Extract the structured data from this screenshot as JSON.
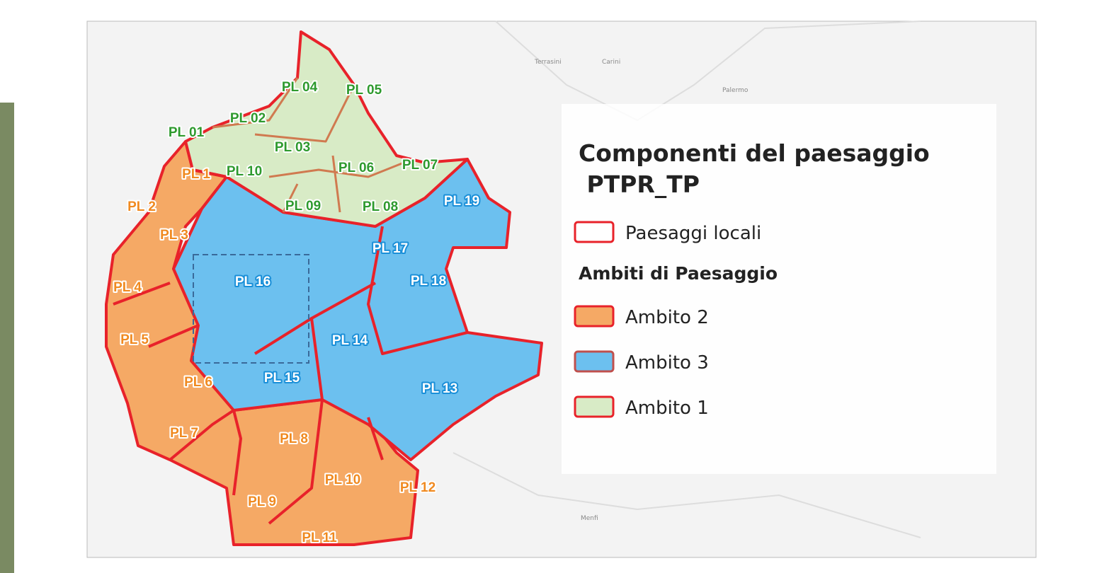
{
  "map": {
    "labels": {
      "ambito1": [
        "PL 01",
        "PL 02",
        "PL 04",
        "PL 05",
        "PL 03",
        "PL 06",
        "PL 07",
        "PL 10",
        "PL 09",
        "PL 08"
      ],
      "ambito2": [
        "PL 1",
        "PL 2",
        "PL 3",
        "PL 4",
        "PL 5",
        "PL 6",
        "PL 7",
        "PL 8",
        "PL 9",
        "PL 10",
        "PL 11",
        "PL 12"
      ],
      "ambito3": [
        "PL 19",
        "PL 17",
        "PL 16",
        "PL 18",
        "PL 14",
        "PL 15",
        "PL 13"
      ]
    },
    "places": [
      "Palermo",
      "Carini",
      "Terrasini",
      "Menfi"
    ],
    "legend": {
      "title": [
        "Componenti del paesaggio",
        " PTPR_TP"
      ],
      "outline": {
        "label": "Paesaggi locali",
        "color": "#e8222a"
      },
      "section": "Ambiti di Paesaggio",
      "items": [
        {
          "label": "Ambito 2",
          "color": "#f5a965"
        },
        {
          "label": "Ambito 3",
          "color": "#6cc0ef"
        },
        {
          "label": "Ambito 1",
          "color": "#d8ebc6"
        }
      ]
    }
  }
}
